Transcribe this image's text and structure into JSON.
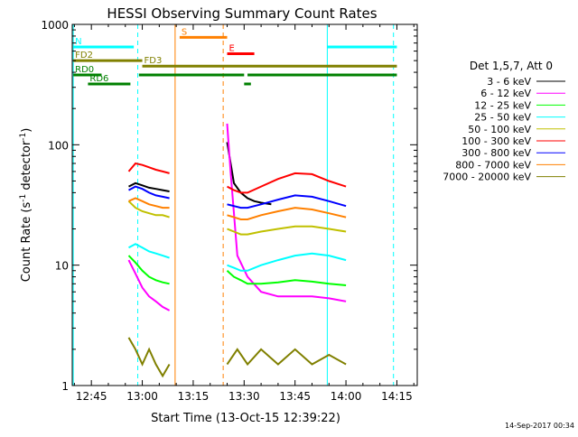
{
  "chart_data": {
    "type": "line",
    "title": "HESSI Observing Summary Count Rates",
    "xlabel": "Start Time (13-Oct-15 12:39:22)",
    "ylabel_main": "Count Rate (s",
    "ylabel_exp1": "-1",
    "ylabel_mid": " detector",
    "ylabel_exp2": "-1",
    "ylabel_end": ")",
    "y_scale": "log",
    "ylim": [
      1,
      1000
    ],
    "xlim": [
      "12:39:22",
      "14:21:00"
    ],
    "x_ticks": [
      {
        "t": "12:45",
        "label": "12:45"
      },
      {
        "t": "13:00",
        "label": "13:00"
      },
      {
        "t": "13:15",
        "label": "13:15"
      },
      {
        "t": "13:30",
        "label": "13:30"
      },
      {
        "t": "13:45",
        "label": "13:45"
      },
      {
        "t": "14:00",
        "label": "14:00"
      },
      {
        "t": "14:15",
        "label": "14:15"
      }
    ],
    "y_ticks": [
      {
        "v": 1,
        "label": "1"
      },
      {
        "v": 10,
        "label": "10"
      },
      {
        "v": 100,
        "label": "100"
      },
      {
        "v": 1000,
        "label": "1000"
      }
    ],
    "legend_title": "Det 1,5,7, Att 0",
    "legend_position": "right",
    "timestamp": "14-Sep-2017 00:34",
    "vertical_lines": [
      {
        "t": "12:39:40",
        "color": "#00ffff",
        "style": "solid"
      },
      {
        "t": "12:58:40",
        "color": "#00ffff",
        "style": "dashed"
      },
      {
        "t": "13:09:40",
        "color": "#ff8000",
        "style": "solid"
      },
      {
        "t": "13:23:50",
        "color": "#ff8000",
        "style": "dashed"
      },
      {
        "t": "13:54:30",
        "color": "#00ffff",
        "style": "solid"
      },
      {
        "t": "14:14:00",
        "color": "#00ffff",
        "style": "dashed"
      }
    ],
    "flag_bars": [
      {
        "label": "N",
        "color": "#00ffff",
        "y": 650,
        "segments": [
          [
            "12:39:40",
            "12:57:30"
          ],
          [
            "13:54:30",
            "14:15:00"
          ]
        ]
      },
      {
        "label": "S",
        "color": "#ff8000",
        "y": 780,
        "segments": [
          [
            "13:11:00",
            "13:25:00"
          ]
        ]
      },
      {
        "label": "E",
        "color": "#ff0000",
        "y": 570,
        "segments": [
          [
            "13:25:00",
            "13:33:00"
          ]
        ]
      },
      {
        "label": "FD2",
        "color": "#808000",
        "y": 500,
        "segments": [
          [
            "12:39:40",
            "13:00:00"
          ]
        ]
      },
      {
        "label": "FD3",
        "color": "#808000",
        "y": 450,
        "segments": [
          [
            "13:00:00",
            "14:15:00"
          ]
        ]
      },
      {
        "label": "RD0",
        "color": "#008000",
        "y": 380,
        "segments": [
          [
            "12:39:40",
            "12:48:00"
          ],
          [
            "12:59:00",
            "13:30:00"
          ],
          [
            "13:31:00",
            "14:15:00"
          ]
        ]
      },
      {
        "label": "RD6",
        "color": "#008000",
        "y": 320,
        "segments": [
          [
            "12:44:00",
            "12:56:30"
          ],
          [
            "13:30:00",
            "13:32:00"
          ]
        ]
      }
    ],
    "series": [
      {
        "name": "3 - 6 keV",
        "color": "#000000",
        "segments": [
          {
            "x": [
              "12:56:00",
              "12:58:00",
              "13:00:00",
              "13:02:00",
              "13:04:00",
              "13:06:00",
              "13:08:00"
            ],
            "y": [
              45,
              48,
              46,
              44,
              43,
              42,
              41
            ]
          },
          {
            "x": [
              "13:25:00",
              "13:27:00",
              "13:29:00",
              "13:31:00",
              "13:33:00",
              "13:35:00",
              "13:38:00"
            ],
            "y": [
              105,
              48,
              40,
              36,
              34,
              33,
              32
            ]
          }
        ]
      },
      {
        "name": "6 - 12 keV",
        "color": "#ff00ff",
        "segments": [
          {
            "x": [
              "12:56:00",
              "12:58:00",
              "13:00:00",
              "13:02:00",
              "13:04:00",
              "13:06:00",
              "13:08:00"
            ],
            "y": [
              11,
              8.5,
              6.5,
              5.5,
              5,
              4.5,
              4.2
            ]
          },
          {
            "x": [
              "13:25:00",
              "13:26:00",
              "13:28:00",
              "13:31:00",
              "13:35:00",
              "13:40:00",
              "13:45:00",
              "13:50:00",
              "13:55:00",
              "14:00:00"
            ],
            "y": [
              150,
              60,
              12,
              8,
              6,
              5.5,
              5.5,
              5.5,
              5.3,
              5
            ]
          }
        ]
      },
      {
        "name": "12 - 25 keV",
        "color": "#00ff00",
        "segments": [
          {
            "x": [
              "12:56:00",
              "12:58:00",
              "13:00:00",
              "13:02:00",
              "13:04:00",
              "13:06:00",
              "13:08:00"
            ],
            "y": [
              12,
              10.5,
              9,
              8,
              7.5,
              7.2,
              7
            ]
          },
          {
            "x": [
              "13:25:00",
              "13:27:00",
              "13:29:00",
              "13:31:00",
              "13:35:00",
              "13:40:00",
              "13:45:00",
              "13:50:00",
              "13:55:00",
              "14:00:00"
            ],
            "y": [
              9,
              8,
              7.5,
              7,
              7,
              7.2,
              7.5,
              7.3,
              7,
              6.8
            ]
          }
        ]
      },
      {
        "name": "25 - 50 keV",
        "color": "#00ffff",
        "segments": [
          {
            "x": [
              "12:56:00",
              "12:58:00",
              "13:00:00",
              "13:02:00",
              "13:04:00",
              "13:06:00",
              "13:08:00"
            ],
            "y": [
              14,
              15,
              14,
              13,
              12.5,
              12,
              11.5
            ]
          },
          {
            "x": [
              "13:25:00",
              "13:27:00",
              "13:29:00",
              "13:31:00",
              "13:35:00",
              "13:40:00",
              "13:45:00",
              "13:50:00",
              "13:55:00",
              "14:00:00"
            ],
            "y": [
              10,
              9.5,
              9,
              9,
              10,
              11,
              12,
              12.5,
              12,
              11
            ]
          }
        ]
      },
      {
        "name": "50 - 100 keV",
        "color": "#c0c000",
        "segments": [
          {
            "x": [
              "12:56:00",
              "12:58:00",
              "13:00:00",
              "13:02:00",
              "13:04:00",
              "13:06:00",
              "13:08:00"
            ],
            "y": [
              34,
              30,
              28,
              27,
              26,
              26,
              25
            ]
          },
          {
            "x": [
              "13:25:00",
              "13:27:00",
              "13:29:00",
              "13:31:00",
              "13:35:00",
              "13:40:00",
              "13:45:00",
              "13:50:00",
              "13:55:00",
              "14:00:00"
            ],
            "y": [
              20,
              19,
              18,
              18,
              19,
              20,
              21,
              21,
              20,
              19
            ]
          }
        ]
      },
      {
        "name": "100 - 300 keV",
        "color": "#ff0000",
        "segments": [
          {
            "x": [
              "12:56:00",
              "12:58:00",
              "13:00:00",
              "13:02:00",
              "13:04:00",
              "13:06:00",
              "13:08:00"
            ],
            "y": [
              60,
              70,
              68,
              65,
              62,
              60,
              58
            ]
          },
          {
            "x": [
              "13:25:00",
              "13:27:00",
              "13:29:00",
              "13:31:00",
              "13:35:00",
              "13:40:00",
              "13:45:00",
              "13:50:00",
              "13:55:00",
              "14:00:00"
            ],
            "y": [
              45,
              42,
              40,
              40,
              45,
              52,
              58,
              57,
              50,
              45
            ]
          }
        ]
      },
      {
        "name": "300 - 800 keV",
        "color": "#0000ff",
        "segments": [
          {
            "x": [
              "12:56:00",
              "12:58:00",
              "13:00:00",
              "13:02:00",
              "13:04:00",
              "13:06:00",
              "13:08:00"
            ],
            "y": [
              42,
              45,
              43,
              40,
              38,
              37,
              36
            ]
          },
          {
            "x": [
              "13:25:00",
              "13:27:00",
              "13:29:00",
              "13:31:00",
              "13:35:00",
              "13:40:00",
              "13:45:00",
              "13:50:00",
              "13:55:00",
              "14:00:00"
            ],
            "y": [
              32,
              31,
              30,
              30,
              32,
              35,
              38,
              37,
              34,
              31
            ]
          }
        ]
      },
      {
        "name": "800 - 7000 keV",
        "color": "#ff8000",
        "segments": [
          {
            "x": [
              "12:56:00",
              "12:58:00",
              "13:00:00",
              "13:02:00",
              "13:04:00",
              "13:06:00",
              "13:08:00"
            ],
            "y": [
              34,
              36,
              34,
              32,
              31,
              30,
              30
            ]
          },
          {
            "x": [
              "13:25:00",
              "13:27:00",
              "13:29:00",
              "13:31:00",
              "13:35:00",
              "13:40:00",
              "13:45:00",
              "13:50:00",
              "13:55:00",
              "14:00:00"
            ],
            "y": [
              26,
              25,
              24,
              24,
              26,
              28,
              30,
              29,
              27,
              25
            ]
          }
        ]
      },
      {
        "name": "7000 - 20000 keV",
        "color": "#808000",
        "segments": [
          {
            "x": [
              "12:56:00",
              "12:58:00",
              "13:00:00",
              "13:02:00",
              "13:04:00",
              "13:06:00",
              "13:08:00"
            ],
            "y": [
              2.5,
              2,
              1.5,
              2,
              1.5,
              1.2,
              1.5
            ]
          },
          {
            "x": [
              "13:25:00",
              "13:28:00",
              "13:31:00",
              "13:35:00",
              "13:40:00",
              "13:45:00",
              "13:50:00",
              "13:55:00",
              "14:00:00"
            ],
            "y": [
              1.5,
              2,
              1.5,
              2,
              1.5,
              2,
              1.5,
              1.8,
              1.5
            ]
          }
        ]
      }
    ]
  }
}
